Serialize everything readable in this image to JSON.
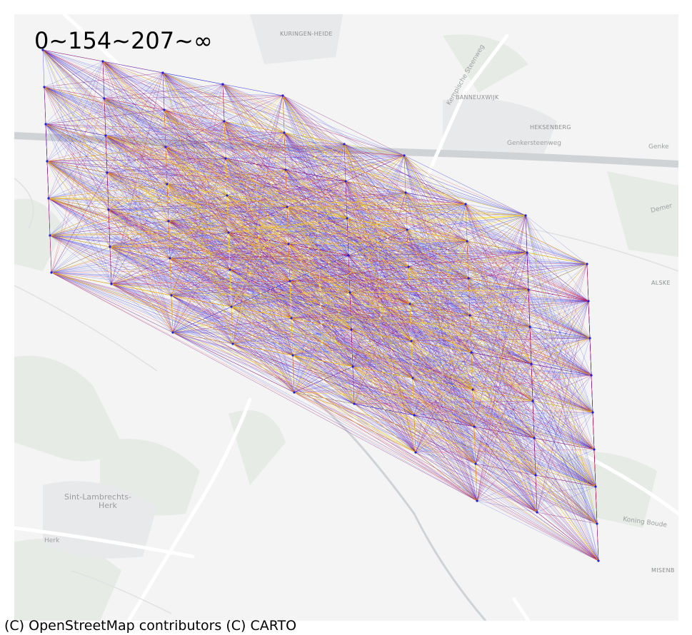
{
  "legend": {
    "text": "0~154~207~∞"
  },
  "attribution": {
    "text": "(C) OpenStreetMap contributors (C) CARTO"
  },
  "basemap": {
    "places": [
      "KURINGEN-HEIDE",
      "BANNEUXWIJK",
      "HEKSENBERG",
      "Sint-Lambrechts-",
      "Herk",
      "MISENB",
      "ALSKE"
    ],
    "roads": [
      "Kempische Steenweg",
      "Genkersteenweg",
      "Genke",
      "Koning Boude",
      "Demer",
      "Herk"
    ]
  },
  "network": {
    "colors": {
      "low": "#1f1fe6",
      "mid": "#d81b3c",
      "high": "#ffd800"
    },
    "bins": [
      "0~154",
      "154~207",
      "207~∞"
    ]
  }
}
